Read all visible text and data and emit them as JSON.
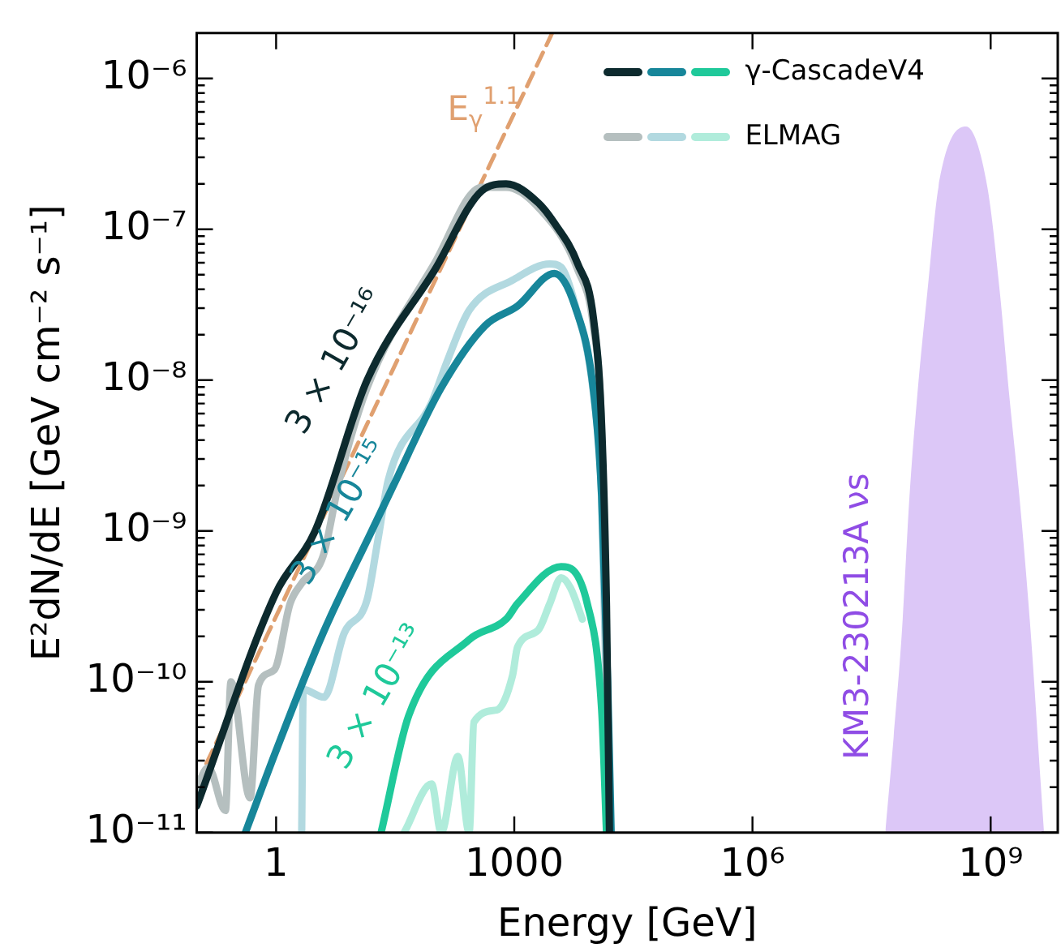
{
  "chart_data": {
    "type": "line",
    "xlabel": "Energy [GeV]",
    "ylabel": "E²dN/dE [GeV cm⁻² s⁻¹]",
    "log": "xy",
    "marker": "none",
    "legend": "top right",
    "xlim": [
      0.1,
      7000000000
    ],
    "ylim": [
      1e-11,
      2e-06
    ],
    "xticks": [
      1,
      1000,
      {
        "value": 1000000,
        "label": "10⁶"
      },
      {
        "value": 1000000000,
        "label": "10⁹"
      }
    ],
    "yticks": [
      {
        "value": 1e-11,
        "label": "10⁻¹¹"
      },
      {
        "value": 2e-11,
        "label": null
      },
      {
        "value": 3e-11,
        "label": null
      },
      {
        "value": 4e-11,
        "label": null
      },
      {
        "value": 5e-11,
        "label": null
      },
      {
        "value": 6e-11,
        "label": null
      },
      {
        "value": 7e-11,
        "label": null
      },
      {
        "value": 8e-11,
        "label": null
      },
      {
        "value": 9e-11,
        "label": null
      },
      {
        "value": 1e-10,
        "label": "10⁻¹⁰"
      },
      {
        "value": 2e-10,
        "label": null
      },
      {
        "value": 3e-10,
        "label": null
      },
      {
        "value": 4e-10,
        "label": null
      },
      {
        "value": 5e-10,
        "label": null
      },
      {
        "value": 6e-10,
        "label": null
      },
      {
        "value": 7e-10,
        "label": null
      },
      {
        "value": 8e-10,
        "label": null
      },
      {
        "value": 9e-10,
        "label": null
      },
      {
        "value": 1e-09,
        "label": "10⁻⁹"
      },
      {
        "value": 2e-09,
        "label": null
      },
      {
        "value": 3e-09,
        "label": null
      },
      {
        "value": 4e-09,
        "label": null
      },
      {
        "value": 5e-09,
        "label": null
      },
      {
        "value": 6e-09,
        "label": null
      },
      {
        "value": 7e-09,
        "label": null
      },
      {
        "value": 8e-09,
        "label": null
      },
      {
        "value": 9e-09,
        "label": null
      },
      {
        "value": 1e-08,
        "label": "10⁻⁸"
      },
      {
        "value": 2e-08,
        "label": null
      },
      {
        "value": 3e-08,
        "label": null
      },
      {
        "value": 4e-08,
        "label": null
      },
      {
        "value": 5e-08,
        "label": null
      },
      {
        "value": 6e-08,
        "label": null
      },
      {
        "value": 7e-08,
        "label": null
      },
      {
        "value": 8e-08,
        "label": null
      },
      {
        "value": 9e-08,
        "label": null
      },
      {
        "value": 1e-07,
        "label": "10⁻⁷"
      },
      {
        "value": 2e-07,
        "label": null
      },
      {
        "value": 3e-07,
        "label": null
      },
      {
        "value": 4e-07,
        "label": null
      },
      {
        "value": 5e-07,
        "label": null
      },
      {
        "value": 6e-07,
        "label": null
      },
      {
        "value": 7e-07,
        "label": null
      },
      {
        "value": 8e-07,
        "label": null
      },
      {
        "value": 9e-07,
        "label": null
      },
      {
        "value": 1e-06,
        "label": "10⁻⁶"
      }
    ],
    "series": [
      {
        "color": "#0d2a2e",
        "x": [
          0.1,
          1,
          3.1,
          14,
          100,
          390,
          790,
          2000,
          3200,
          6300,
          10000,
          12600,
          14500,
          15800
        ],
        "values": [
          1.5e-11,
          3.9e-10,
          1e-09,
          1e-08,
          5.4e-08,
          1.8e-07,
          2e-07,
          1.5e-07,
          1.1e-07,
          5.9e-08,
          2.5e-08,
          5e-09,
          3.2e-10,
          1e-11
        ]
      },
      {
        "color": "#17869a",
        "x": [
          0.41,
          1,
          3.9,
          16,
          30,
          120,
          430,
          1100,
          3200,
          5800,
          10000,
          12600,
          15000,
          16600
        ],
        "values": [
          1e-11,
          3.5e-11,
          2.1e-10,
          1e-09,
          2e-09,
          8.9e-09,
          2.3e-08,
          3.1e-08,
          5.1e-08,
          3.1e-08,
          8.3e-09,
          1.7e-09,
          1e-10,
          1e-11
        ]
      },
      {
        "name": "γ-CascadeV4",
        "color": "#1fc99a",
        "x": [
          21,
          47,
          270,
          790,
          1100,
          3900,
          8300,
          12600,
          14500
        ],
        "values": [
          1e-11,
          6e-11,
          1.9e-10,
          2.6e-10,
          3.3e-10,
          5.8e-10,
          3.3e-10,
          6.5e-11,
          1e-11
        ]
      },
      {
        "color": "#b5bfbf",
        "x": [
          0.1,
          0.14,
          0.23,
          0.27,
          0.47,
          0.6,
          0.95,
          1.5,
          2.1,
          3.9,
          6.3,
          14,
          100,
          390,
          790,
          2000,
          6300,
          10000,
          12600,
          15800
        ],
        "values": [
          2e-11,
          2.7e-11,
          1.4e-11,
          1e-10,
          1.7e-11,
          9.5e-11,
          1.2e-10,
          3.3e-10,
          4.5e-10,
          6.8e-10,
          2.2e-09,
          8.9e-09,
          6e-08,
          1.9e-07,
          1.9e-07,
          1.4e-07,
          5.4e-08,
          2.2e-08,
          4.5e-09,
          1e-11
        ]
      },
      {
        "color": "#b2d9e0",
        "x": [
          2.1,
          2.2,
          4,
          7.2,
          14,
          19,
          26,
          91,
          140,
          270,
          950,
          2800,
          3900,
          5800,
          10000,
          12600,
          15800
        ],
        "values": [
          1e-11,
          8.9e-11,
          7.9e-11,
          2.1e-10,
          3.5e-10,
          8.5e-10,
          2.2e-09,
          7.1e-09,
          1.3e-08,
          2.9e-08,
          4.6e-08,
          5.9e-08,
          5.6e-08,
          3.2e-08,
          7.9e-09,
          1.6e-09,
          1e-11
        ]
      },
      {
        "name": "ELMAG",
        "color": "#b0ecdb",
        "x": [
          41,
          91,
          120,
          195,
          270,
          310,
          600,
          950,
          1100,
          2000,
          2800,
          3900,
          5100,
          7200
        ],
        "values": [
          1e-11,
          2.1e-11,
          1e-11,
          3.2e-11,
          1e-11,
          5.4e-11,
          6.5e-11,
          1.1e-10,
          1.7e-10,
          2.2e-10,
          3.3e-10,
          4.9e-10,
          4.2e-10,
          2.6e-10
        ]
      },
      {
        "color": "#e0a070",
        "line_style": "dashed",
        "x": [
          0.1,
          3000
        ],
        "values": [
          2.1e-11,
          2e-06
        ]
      },
      {
        "type": "area",
        "color": "#dcc7f7",
        "x": [
          47000000,
          60000000,
          76000000,
          95000000,
          120000000,
          160000000,
          220000000,
          490000000,
          910000000,
          1300000000,
          1700000000,
          2300000000,
          3200000000,
          4300000000,
          4700000000
        ],
        "values": [
          1e-11,
          4.3e-11,
          2.1e-10,
          1.7e-09,
          8.3e-09,
          3.9e-08,
          1.9e-07,
          4.8e-07,
          1.9e-07,
          3.9e-08,
          8.3e-09,
          1.7e-09,
          2.1e-10,
          2e-11,
          1e-11
        ]
      }
    ],
    "annotations": [
      {
        "text": "3 × 10⁻¹⁶",
        "x": 14,
        "y": 1e-08
      },
      {
        "text": "3 × 10⁻¹⁵",
        "x": 16,
        "y": 1e-09
      },
      {
        "text": "3 × 10⁻¹³",
        "x": 47,
        "y": 6e-11
      },
      {
        "text": "E$_{γ}$$^{1.1}$",
        "x": 3000,
        "y": 2e-06
      },
      {
        "text": "KM3-230213A νs",
        "x": 47000000,
        "y": 1e-11
      }
    ]
  }
}
